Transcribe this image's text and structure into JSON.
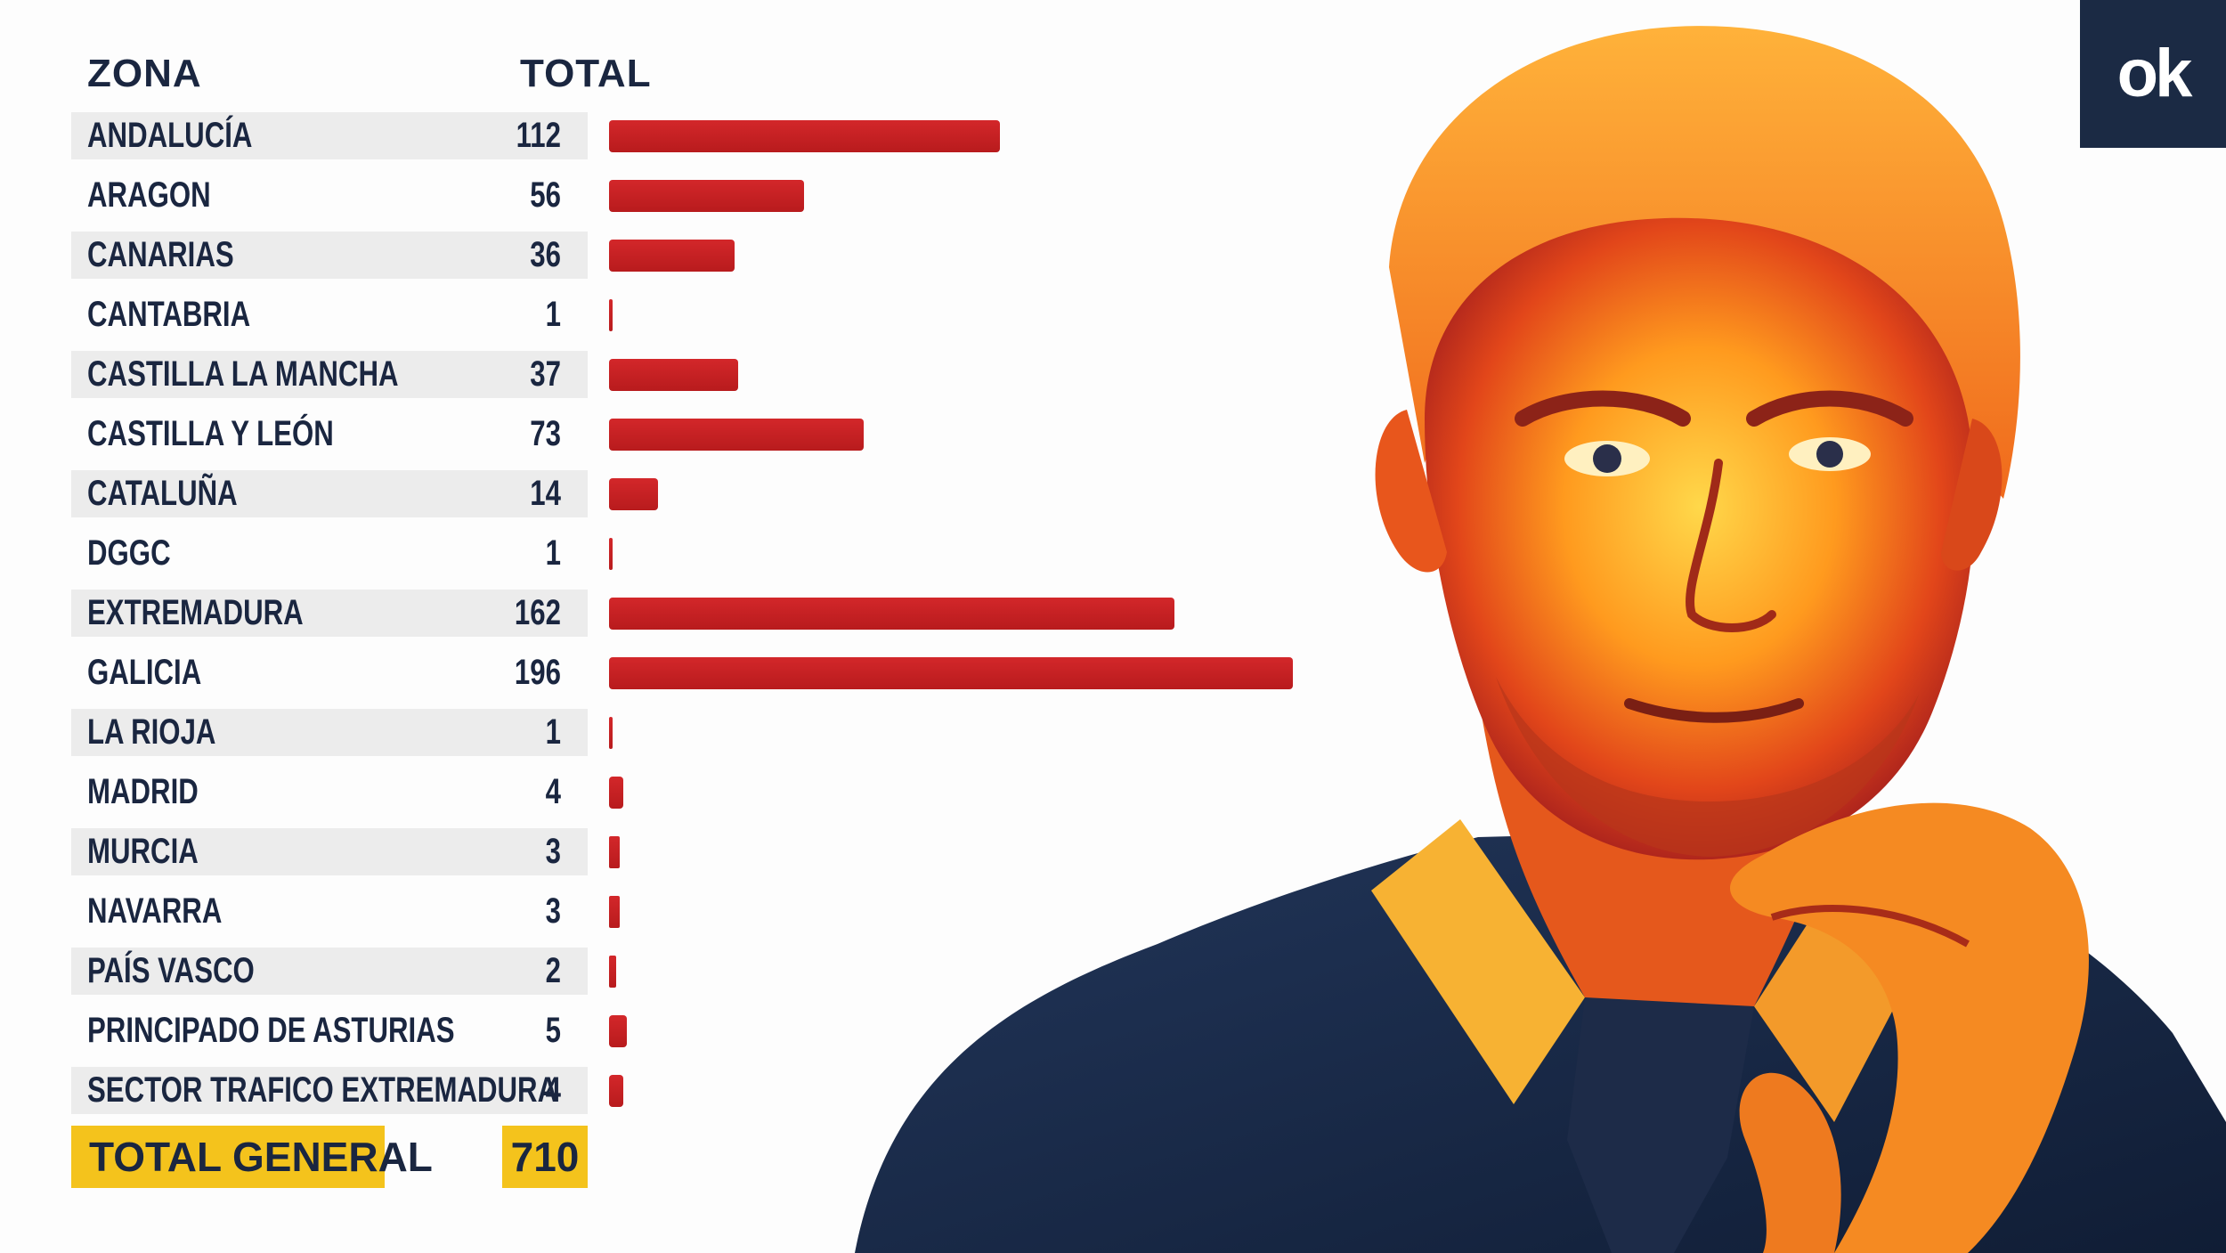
{
  "header": {
    "zona_label": "ZONA",
    "total_label": "TOTAL"
  },
  "chart_data": {
    "type": "bar",
    "orientation": "horizontal",
    "categories": [
      "ANDALUCÍA",
      "ARAGON",
      "CANARIAS",
      "CANTABRIA",
      "CASTILLA LA MANCHA",
      "CASTILLA Y LEÓN",
      "CATALUÑA",
      "DGGC",
      "EXTREMADURA",
      "GALICIA",
      "LA RIOJA",
      "MADRID",
      "MURCIA",
      "NAVARRA",
      "PAÍS VASCO",
      "PRINCIPADO DE ASTURIAS",
      "SECTOR TRAFICO EXTREMADURA"
    ],
    "values": [
      112,
      56,
      36,
      1,
      37,
      73,
      14,
      1,
      162,
      196,
      1,
      4,
      3,
      3,
      2,
      5,
      4
    ],
    "xlim": [
      0,
      196
    ],
    "bar_color": "#c41e20",
    "grid": false
  },
  "total": {
    "label": "TOTAL GENERAL",
    "value": "710"
  },
  "logo": {
    "text": "ok",
    "background": "#1b2a44"
  },
  "colors": {
    "text": "#1a2640",
    "row_background": "#ececec",
    "total_highlight": "#f4c31c"
  }
}
